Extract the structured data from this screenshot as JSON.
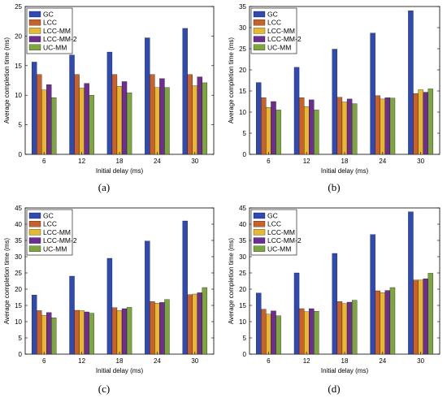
{
  "chart_data": [
    {
      "type": "bar",
      "panel_label": "(a)",
      "categories": [
        "6",
        "12",
        "18",
        "24",
        "30"
      ],
      "xlabel": "Initial delay (ms)",
      "ylabel": "Average completion time (ms)",
      "ylim": [
        0,
        25
      ],
      "yticks": [
        0,
        5,
        10,
        15,
        20,
        25
      ],
      "legend_position": "top-left",
      "series": [
        {
          "name": "GC",
          "values": [
            15.6,
            16.8,
            17.3,
            19.7,
            21.3
          ]
        },
        {
          "name": "LCC",
          "values": [
            13.5,
            13.5,
            13.5,
            13.5,
            13.5
          ]
        },
        {
          "name": "LCC-MM",
          "values": [
            10.9,
            11.2,
            11.5,
            11.3,
            11.6
          ]
        },
        {
          "name": "LCC-MM-2",
          "values": [
            11.8,
            12.0,
            12.3,
            12.8,
            13.1
          ]
        },
        {
          "name": "UC-MM",
          "values": [
            9.6,
            10.0,
            10.4,
            11.3,
            12.1
          ]
        }
      ]
    },
    {
      "type": "bar",
      "panel_label": "(b)",
      "categories": [
        "6",
        "12",
        "18",
        "24",
        "30"
      ],
      "xlabel": "Initial delay (ms)",
      "ylabel": "Average completion time (ms)",
      "ylim": [
        0,
        35
      ],
      "yticks": [
        0,
        5,
        10,
        15,
        20,
        25,
        30,
        35
      ],
      "legend_position": "top-left",
      "series": [
        {
          "name": "GC",
          "values": [
            17.0,
            20.6,
            24.9,
            28.7,
            34.0
          ]
        },
        {
          "name": "LCC",
          "values": [
            13.4,
            13.4,
            13.5,
            13.9,
            14.4
          ]
        },
        {
          "name": "LCC-MM",
          "values": [
            11.1,
            11.3,
            12.4,
            13.1,
            15.3
          ]
        },
        {
          "name": "LCC-MM-2",
          "values": [
            12.5,
            12.9,
            13.1,
            13.4,
            14.7
          ]
        },
        {
          "name": "UC-MM",
          "values": [
            10.5,
            10.5,
            12.0,
            13.3,
            15.5
          ]
        }
      ]
    },
    {
      "type": "bar",
      "panel_label": "(c)",
      "categories": [
        "6",
        "12",
        "18",
        "24",
        "30"
      ],
      "xlabel": "Initial delay (ms)",
      "ylabel": "Average completion time (ms)",
      "ylim": [
        0,
        45
      ],
      "yticks": [
        0,
        5,
        10,
        15,
        20,
        25,
        30,
        35,
        40,
        45
      ],
      "legend_position": "top-left",
      "series": [
        {
          "name": "GC",
          "values": [
            18.2,
            24.0,
            29.5,
            34.8,
            41.0
          ]
        },
        {
          "name": "LCC",
          "values": [
            13.4,
            13.5,
            14.3,
            16.2,
            18.3
          ]
        },
        {
          "name": "LCC-MM",
          "values": [
            11.9,
            13.4,
            13.4,
            15.7,
            18.5
          ]
        },
        {
          "name": "LCC-MM-2",
          "values": [
            12.8,
            13.0,
            14.0,
            15.9,
            18.9
          ]
        },
        {
          "name": "UC-MM",
          "values": [
            11.2,
            12.6,
            14.4,
            16.8,
            20.5
          ]
        }
      ]
    },
    {
      "type": "bar",
      "panel_label": "(d)",
      "categories": [
        "6",
        "12",
        "18",
        "24",
        "30"
      ],
      "xlabel": "Initial delay (ms)",
      "ylabel": "Average completion time (ms)",
      "ylim": [
        0,
        45
      ],
      "yticks": [
        0,
        5,
        10,
        15,
        20,
        25,
        30,
        35,
        40,
        45
      ],
      "legend_position": "top-left",
      "series": [
        {
          "name": "GC",
          "values": [
            18.8,
            25.0,
            31.0,
            36.8,
            43.8
          ]
        },
        {
          "name": "LCC",
          "values": [
            13.8,
            14.0,
            16.2,
            19.5,
            22.8
          ]
        },
        {
          "name": "LCC-MM",
          "values": [
            12.3,
            13.1,
            15.6,
            18.9,
            22.8
          ]
        },
        {
          "name": "LCC-MM-2",
          "values": [
            13.3,
            14.0,
            16.0,
            19.6,
            23.2
          ]
        },
        {
          "name": "UC-MM",
          "values": [
            11.8,
            13.2,
            16.6,
            20.5,
            24.9
          ]
        }
      ]
    }
  ],
  "colors": {
    "GC": "#2f4bb3",
    "LCC": "#c8612a",
    "LCC-MM": "#e8b830",
    "LCC-MM-2": "#6c2f91",
    "UC-MM": "#7da63e"
  }
}
